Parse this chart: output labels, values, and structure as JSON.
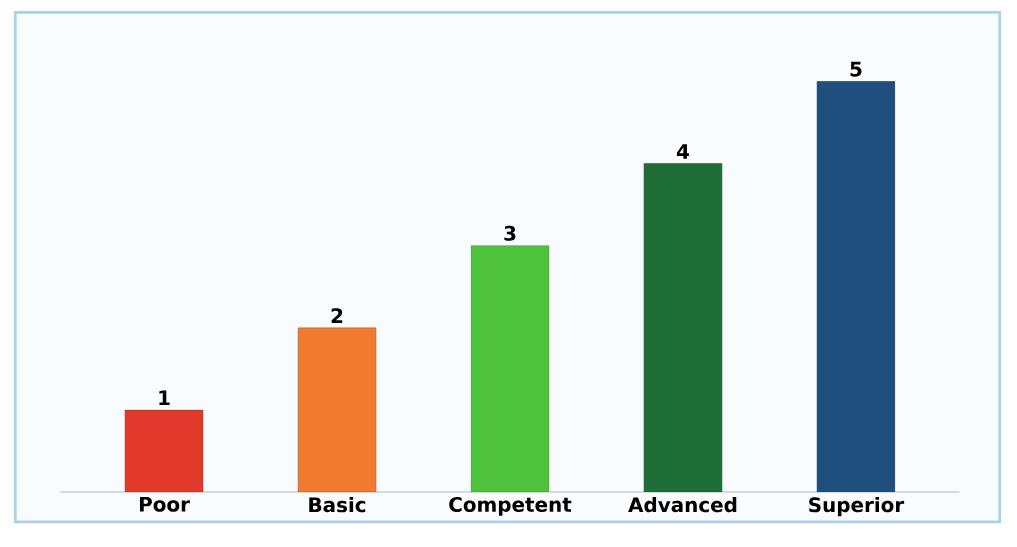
{
  "chart_data": {
    "type": "bar",
    "categories": [
      "Poor",
      "Basic",
      "Competent",
      "Advanced",
      "Superior"
    ],
    "values": [
      1,
      2,
      3,
      4,
      5
    ],
    "colors": [
      "#e0392b",
      "#f07b30",
      "#4fc23c",
      "#1f6e38",
      "#1f4f7d"
    ],
    "data_labels": true
  }
}
